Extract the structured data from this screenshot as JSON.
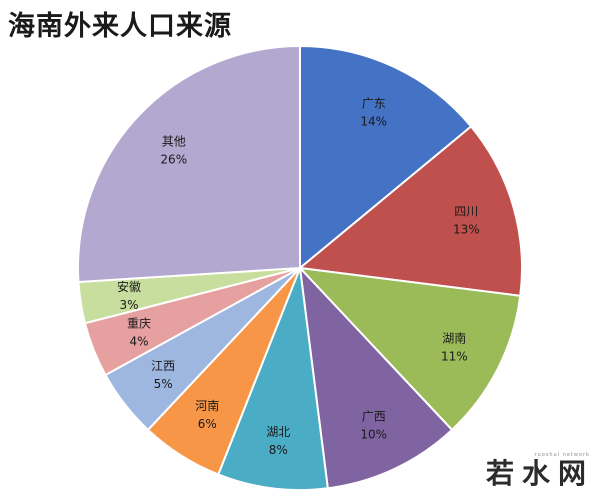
{
  "chart_data": {
    "type": "pie",
    "title": "海南外来人口来源",
    "slices": [
      {
        "label": "广东",
        "value": 14,
        "value_label": "14%",
        "color": "#4472C4"
      },
      {
        "label": "四川",
        "value": 13,
        "value_label": "13%",
        "color": "#C0504D"
      },
      {
        "label": "湖南",
        "value": 11,
        "value_label": "11%",
        "color": "#9BBB59"
      },
      {
        "label": "广西",
        "value": 10,
        "value_label": "10%",
        "color": "#8064A2"
      },
      {
        "label": "湖北",
        "value": 8,
        "value_label": "8%",
        "color": "#4BACC6"
      },
      {
        "label": "河南",
        "value": 6,
        "value_label": "6%",
        "color": "#F79646"
      },
      {
        "label": "江西",
        "value": 5,
        "value_label": "5%",
        "color": "#9DB7E0"
      },
      {
        "label": "重庆",
        "value": 4,
        "value_label": "4%",
        "color": "#E6A0A0"
      },
      {
        "label": "安徽",
        "value": 3,
        "value_label": "3%",
        "color": "#C8DE9E"
      },
      {
        "label": "其他",
        "value": 26,
        "value_label": "26%",
        "color": "#B3A8D0"
      }
    ],
    "start_direction": "12 o'clock",
    "direction": "clockwise",
    "legend": "none"
  },
  "watermark": {
    "text": "若水网",
    "sub_text": "ruoshui network"
  }
}
